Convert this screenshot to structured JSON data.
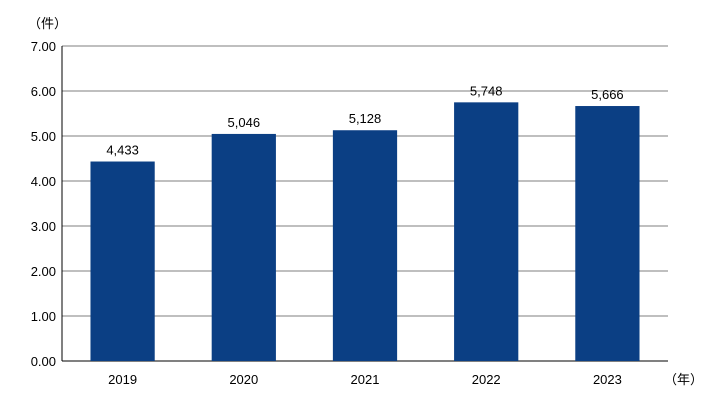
{
  "chart_data": {
    "type": "bar",
    "categories": [
      "2019",
      "2020",
      "2021",
      "2022",
      "2023"
    ],
    "values": [
      4.433,
      5.046,
      5.128,
      5.748,
      5.666
    ],
    "data_labels": [
      "4,433",
      "5,046",
      "5,128",
      "5,748",
      "5,666"
    ],
    "y_ticks": [
      "0.00",
      "1.00",
      "2.00",
      "3.00",
      "4.00",
      "5.00",
      "6.00",
      "7.00"
    ],
    "ylim": [
      0,
      7
    ],
    "ylabel": "（件）",
    "xlabel": "（年）",
    "grid": true,
    "bar_color": "#0b3f84",
    "grid_color": "#7f7f7f"
  }
}
